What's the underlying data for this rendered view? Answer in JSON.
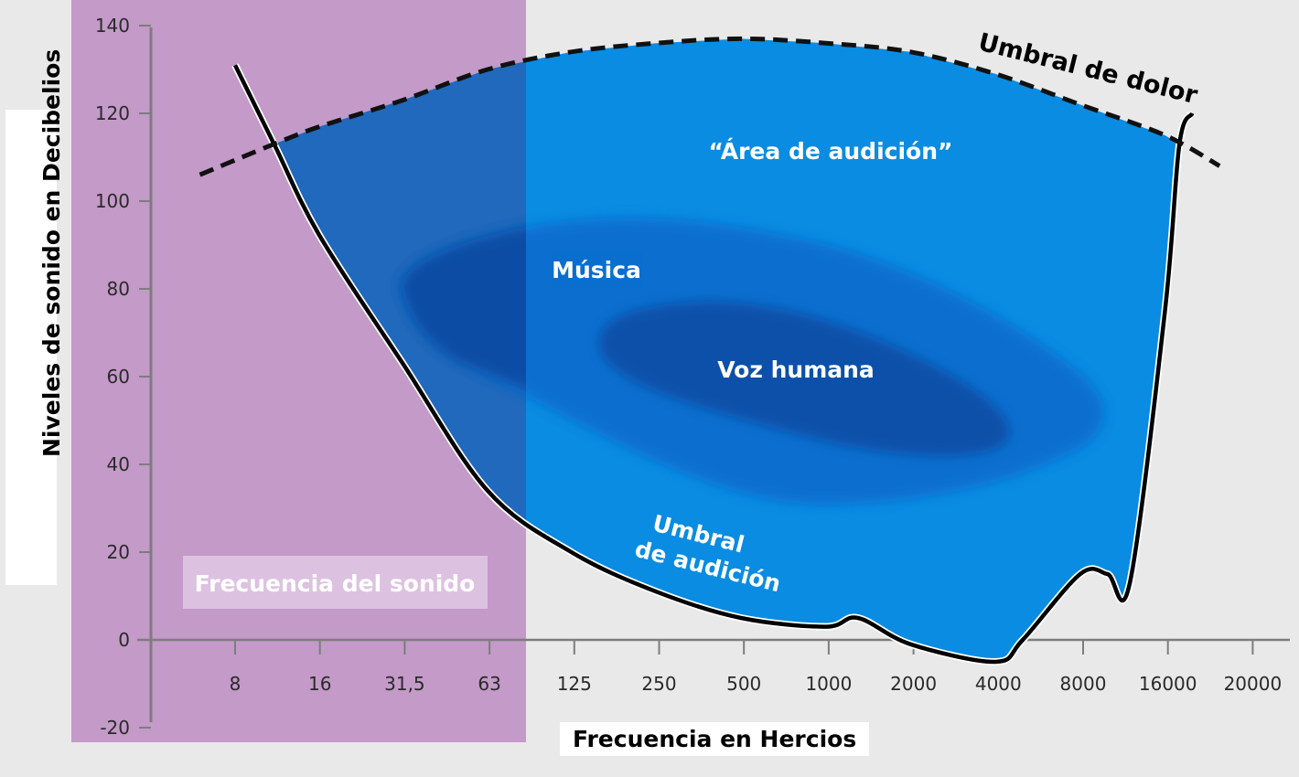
{
  "chart_data": {
    "type": "area",
    "xlabel": "Frecuencia en Hercios",
    "ylabel": "Niveles de sonido en Decibelios",
    "x_ticks": [
      "8",
      "16",
      "31,5",
      "63",
      "125",
      "250",
      "500",
      "1000",
      "2000",
      "4000",
      "8000",
      "16000",
      "20000"
    ],
    "y_ticks": [
      140,
      120,
      100,
      80,
      60,
      40,
      20,
      0,
      -20
    ],
    "ylim": [
      -20,
      140
    ],
    "x_scale": "log",
    "grid": false,
    "highlight_band": {
      "label": "Frecuencia del sonido",
      "from_hz": 8,
      "to_hz": 80
    },
    "series": [
      {
        "name": "Umbral de audición",
        "style": "solid",
        "points": [
          [
            8,
            131
          ],
          [
            11,
            113
          ],
          [
            16,
            92
          ],
          [
            31.5,
            63
          ],
          [
            63,
            34
          ],
          [
            125,
            20
          ],
          [
            250,
            11
          ],
          [
            500,
            5
          ],
          [
            1000,
            3
          ],
          [
            1300,
            5
          ],
          [
            2000,
            -1
          ],
          [
            4000,
            -5
          ],
          [
            5000,
            0
          ],
          [
            8000,
            15
          ],
          [
            10000,
            15
          ],
          [
            12000,
            13
          ],
          [
            16000,
            75
          ],
          [
            18000,
            113
          ],
          [
            20000,
            120
          ]
        ]
      },
      {
        "name": "Umbral de dolor",
        "style": "dashed",
        "points": [
          [
            6,
            106
          ],
          [
            11,
            113
          ],
          [
            16,
            117
          ],
          [
            31.5,
            123
          ],
          [
            63,
            130
          ],
          [
            125,
            134
          ],
          [
            250,
            136
          ],
          [
            500,
            137
          ],
          [
            1000,
            136
          ],
          [
            2000,
            134
          ],
          [
            4000,
            129
          ],
          [
            8000,
            122
          ],
          [
            16000,
            115
          ],
          [
            25000,
            108
          ]
        ]
      }
    ],
    "regions": [
      {
        "label": "“Área de audición”"
      },
      {
        "label": "Música"
      },
      {
        "label": "Voz humana"
      }
    ]
  },
  "colors": {
    "band": "#c39ac8",
    "band_label_bg": "#dcc2e0",
    "hearing_area": "#0a8ce2",
    "hearing_area_in_band": "#2563b5",
    "music": "#0a6ecf",
    "voice": "#0a4fa8"
  }
}
